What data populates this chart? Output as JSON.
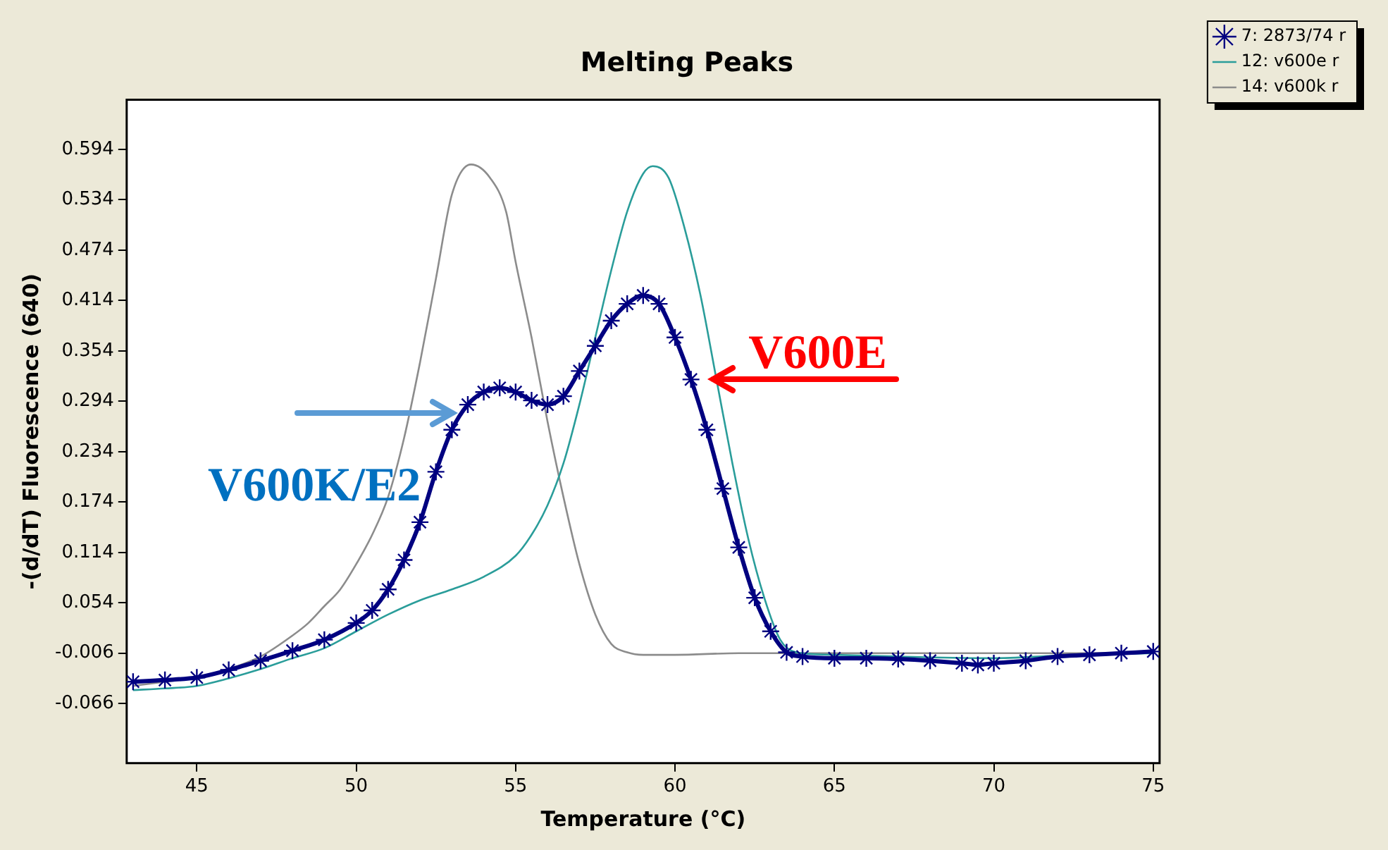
{
  "chart_data": {
    "type": "line",
    "title": "Melting Peaks",
    "xlabel": "Temperature (°C)",
    "ylabel": "-(d/dT) Fluorescence (640)",
    "xlim": [
      42.8,
      75.2
    ],
    "xticks": [
      45,
      50,
      55,
      60,
      65,
      70,
      75
    ],
    "ylim": [
      -0.137,
      0.653
    ],
    "yticks": [
      -0.066,
      -0.006,
      0.054,
      0.114,
      0.174,
      0.234,
      0.294,
      0.354,
      0.414,
      0.474,
      0.534,
      0.594
    ],
    "grid": false,
    "legend": "top right",
    "line_style": "solid",
    "series": [
      {
        "name": "7: 2873/74 r",
        "color": "#000080",
        "marker": "cross",
        "x": [
          43,
          44,
          45,
          46,
          47,
          48,
          49,
          50,
          50.5,
          51,
          51.5,
          52,
          52.5,
          53,
          53.5,
          54,
          54.5,
          55,
          55.5,
          56,
          56.5,
          57,
          57.5,
          58,
          58.5,
          59,
          59.5,
          60,
          60.5,
          61,
          61.5,
          62,
          62.5,
          63,
          63.5,
          64,
          65,
          66,
          67,
          68,
          69,
          69.5,
          70,
          71,
          72,
          73,
          74,
          75
        ],
        "values": [
          -0.04,
          -0.038,
          -0.035,
          -0.026,
          -0.015,
          -0.003,
          0.01,
          0.03,
          0.045,
          0.07,
          0.105,
          0.15,
          0.21,
          0.26,
          0.29,
          0.305,
          0.31,
          0.305,
          0.295,
          0.29,
          0.3,
          0.33,
          0.36,
          0.39,
          0.41,
          0.42,
          0.41,
          0.37,
          0.32,
          0.26,
          0.19,
          0.12,
          0.06,
          0.02,
          -0.005,
          -0.01,
          -0.012,
          -0.012,
          -0.013,
          -0.015,
          -0.018,
          -0.02,
          -0.018,
          -0.015,
          -0.01,
          -0.008,
          -0.006,
          -0.004
        ]
      },
      {
        "name": "12: v600e r",
        "color": "#2a9d9a",
        "marker": "none",
        "x": [
          43,
          44,
          45,
          46,
          47,
          48,
          49,
          50,
          51,
          52,
          53,
          54,
          55,
          55.5,
          56,
          56.5,
          57,
          57.5,
          58,
          58.5,
          59,
          59.3,
          59.8,
          60.3,
          60.8,
          61.3,
          61.8,
          62.3,
          62.8,
          63.3,
          63.8,
          65,
          67,
          70,
          72,
          75
        ],
        "values": [
          -0.05,
          -0.048,
          -0.045,
          -0.036,
          -0.025,
          -0.012,
          0,
          0.02,
          0.04,
          0.057,
          0.07,
          0.085,
          0.11,
          0.135,
          0.17,
          0.22,
          0.29,
          0.37,
          0.45,
          0.52,
          0.565,
          0.574,
          0.56,
          0.5,
          0.42,
          0.32,
          0.22,
          0.13,
          0.06,
          0.01,
          -0.005,
          -0.008,
          -0.01,
          -0.012,
          -0.009,
          -0.006
        ]
      },
      {
        "name": "14: v600k r",
        "color": "#8c8c8c",
        "marker": "none",
        "x": [
          43,
          44,
          45,
          46,
          47,
          48,
          48.5,
          49,
          49.5,
          50,
          50.5,
          51,
          51.5,
          52,
          52.5,
          53,
          53.6,
          54.2,
          54.7,
          55,
          55.5,
          56,
          56.5,
          57,
          57.5,
          58,
          58.5,
          59,
          60,
          62,
          65,
          70,
          75
        ],
        "values": [
          -0.045,
          -0.04,
          -0.035,
          -0.025,
          -0.01,
          0.015,
          0.03,
          0.05,
          0.07,
          0.1,
          0.135,
          0.18,
          0.25,
          0.34,
          0.44,
          0.54,
          0.576,
          0.56,
          0.52,
          0.46,
          0.37,
          0.27,
          0.18,
          0.1,
          0.04,
          0.005,
          -0.005,
          -0.008,
          -0.008,
          -0.006,
          -0.006,
          -0.006,
          -0.006
        ]
      }
    ],
    "annotations": [
      {
        "text": "V600K/E2",
        "x": 53,
        "y": 0.28
      },
      {
        "text": "V600E",
        "x": 61.2,
        "y": 0.32
      }
    ]
  }
}
